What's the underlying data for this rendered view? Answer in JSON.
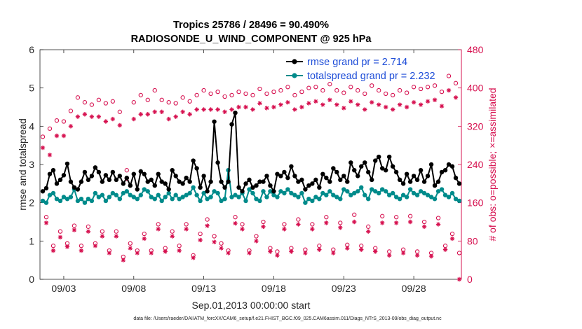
{
  "chart_data": {
    "type": "line",
    "title_line1": "Tropics 25786 / 28496 = 90.490%",
    "title_line2": "RADIOSONDE_U_WIND_COMPONENT @ 925 hPa",
    "xlabel": "Sep.01,2013 00:00:00 start",
    "ylabel_left": "rmse and totalspread",
    "ylabel_right": "# of obs: o=possible; ×=assimilated",
    "footnote": "data file: /Users/raeder/DAI/ATM_forcXX/CAM6_setup/f.e21.FHIST_BGC.f09_025.CAM6assim.011/Diags_NTrS_2013-09/obs_diag_output.nc",
    "x_unit": "days since Sep.01,2013 00:00",
    "xlim": [
      0.8,
      30.9
    ],
    "ylim_left": [
      0,
      6
    ],
    "ylim_right": [
      0,
      480
    ],
    "x_tick_values": [
      2.5,
      7.5,
      12.5,
      17.5,
      22.5,
      27.5
    ],
    "x_tick_labels": [
      "09/03",
      "09/08",
      "09/13",
      "09/18",
      "09/23",
      "09/28"
    ],
    "y_left_ticks": [
      "0",
      "1",
      "2",
      "3",
      "4",
      "5",
      "6"
    ],
    "y_right_ticks": [
      "0",
      "80",
      "160",
      "240",
      "320",
      "400",
      "480"
    ],
    "colors": {
      "rmse": "#000000",
      "totalspread": "#008b8b",
      "obs": "#d6104f",
      "legend_text": "#1f4ed8",
      "axis_right": "#d6104f"
    },
    "legend": [
      {
        "name": "rmse grand pr = 2.714",
        "marker": "dot",
        "color": "#000000"
      },
      {
        "name": "totalspread grand pr = 2.232",
        "marker": "dot",
        "color": "#008b8b"
      }
    ],
    "x": [
      1.0,
      1.25,
      1.5,
      1.75,
      2.0,
      2.25,
      2.5,
      2.75,
      3.0,
      3.25,
      3.5,
      3.75,
      4.0,
      4.25,
      4.5,
      4.75,
      5.0,
      5.25,
      5.5,
      5.75,
      6.0,
      6.25,
      6.5,
      6.75,
      7.0,
      7.25,
      7.5,
      7.75,
      8.0,
      8.25,
      8.5,
      8.75,
      9.0,
      9.25,
      9.5,
      9.75,
      10.0,
      10.25,
      10.5,
      10.75,
      11.0,
      11.25,
      11.5,
      11.75,
      12.0,
      12.25,
      12.5,
      12.75,
      13.0,
      13.25,
      13.5,
      13.75,
      14.0,
      14.25,
      14.5,
      14.75,
      15.0,
      15.25,
      15.5,
      15.75,
      16.0,
      16.25,
      16.5,
      16.75,
      17.0,
      17.25,
      17.5,
      17.75,
      18.0,
      18.25,
      18.5,
      18.75,
      19.0,
      19.25,
      19.5,
      19.75,
      20.0,
      20.25,
      20.5,
      20.75,
      21.0,
      21.25,
      21.5,
      21.75,
      22.0,
      22.25,
      22.5,
      22.75,
      23.0,
      23.25,
      23.5,
      23.75,
      24.0,
      24.25,
      24.5,
      24.75,
      25.0,
      25.25,
      25.5,
      25.75,
      26.0,
      26.25,
      26.5,
      26.75,
      27.0,
      27.25,
      27.5,
      27.75,
      28.0,
      28.25,
      28.5,
      28.75,
      29.0,
      29.25,
      29.5,
      29.75,
      30.0,
      30.25,
      30.5,
      30.75
    ],
    "series": [
      {
        "name": "rmse",
        "axis": "left",
        "values": [
          2.3,
          2.38,
          2.75,
          2.85,
          2.5,
          2.6,
          2.72,
          3.02,
          2.55,
          2.4,
          2.35,
          2.55,
          2.8,
          2.6,
          2.7,
          2.92,
          2.8,
          2.55,
          2.72,
          2.6,
          2.8,
          2.6,
          2.7,
          2.5,
          2.65,
          2.45,
          2.75,
          2.35,
          2.82,
          2.75,
          2.55,
          2.6,
          2.45,
          2.75,
          2.55,
          2.5,
          2.35,
          2.85,
          2.7,
          2.55,
          2.5,
          2.65,
          2.55,
          3.1,
          2.9,
          2.4,
          2.7,
          2.3,
          2.55,
          4.12,
          3.05,
          2.55,
          2.4,
          2.55,
          4.05,
          4.35,
          2.4,
          2.3,
          2.5,
          2.6,
          2.4,
          2.45,
          2.55,
          2.55,
          2.7,
          2.45,
          2.3,
          2.75,
          2.7,
          2.8,
          2.65,
          2.95,
          2.7,
          2.55,
          2.6,
          2.35,
          2.45,
          2.5,
          2.6,
          2.4,
          2.75,
          2.65,
          2.55,
          2.9,
          2.8,
          2.6,
          2.7,
          2.55,
          3.05,
          2.85,
          2.7,
          2.95,
          3.05,
          2.8,
          2.6,
          3.1,
          3.2,
          2.9,
          2.85,
          3.2,
          2.95,
          2.8,
          2.6,
          2.5,
          2.75,
          2.55,
          2.7,
          2.6,
          2.85,
          2.55,
          2.7,
          3.0,
          2.45,
          2.55,
          2.8,
          2.85,
          3.0,
          2.95,
          2.65,
          2.5
        ]
      },
      {
        "name": "totalspread",
        "axis": "left",
        "values": [
          2.05,
          2.0,
          2.2,
          2.25,
          2.1,
          2.05,
          2.15,
          2.1,
          2.15,
          2.35,
          2.05,
          2.1,
          2.0,
          2.1,
          2.05,
          2.25,
          2.15,
          2.2,
          2.05,
          2.15,
          2.25,
          2.2,
          2.1,
          2.25,
          2.3,
          2.2,
          2.15,
          2.1,
          2.2,
          2.35,
          2.3,
          2.15,
          2.1,
          2.2,
          2.05,
          2.15,
          2.25,
          2.1,
          2.2,
          2.1,
          2.15,
          2.2,
          2.25,
          2.4,
          2.2,
          2.05,
          2.25,
          2.1,
          2.15,
          2.3,
          2.25,
          2.05,
          2.1,
          2.85,
          2.15,
          2.2,
          2.15,
          2.25,
          2.05,
          2.35,
          2.25,
          2.1,
          2.05,
          2.3,
          2.15,
          2.3,
          2.2,
          2.15,
          2.3,
          2.25,
          2.35,
          2.25,
          2.2,
          2.15,
          2.25,
          2.0,
          2.1,
          2.05,
          2.15,
          2.1,
          2.25,
          2.2,
          2.3,
          2.2,
          2.15,
          2.1,
          2.35,
          2.3,
          2.2,
          2.25,
          2.3,
          2.4,
          2.2,
          2.1,
          2.35,
          2.3,
          2.25,
          2.35,
          2.3,
          2.2,
          2.25,
          2.15,
          2.1,
          2.2,
          2.15,
          2.35,
          2.25,
          2.2,
          2.3,
          2.25,
          2.2,
          2.15,
          2.1,
          2.3,
          2.35,
          2.2,
          2.15,
          2.25,
          2.1,
          2.05
        ]
      },
      {
        "name": "obs possible",
        "axis": "right",
        "marker": "circle",
        "values": [
          298,
          130,
          315,
          70,
          332,
          100,
          330,
          75,
          352,
          112,
          380,
          70,
          370,
          110,
          365,
          75,
          375,
          100,
          368,
          60,
          372,
          100,
          350,
          47,
          228,
          75,
          370,
          60,
          385,
          95,
          375,
          60,
          395,
          115,
          375,
          65,
          370,
          100,
          368,
          70,
          380,
          115,
          372,
          50,
          385,
          95,
          395,
          125,
          388,
          90,
          392,
          75,
          382,
          60,
          385,
          130,
          392,
          115,
          388,
          60,
          385,
          90,
          398,
          120,
          388,
          65,
          392,
          58,
          395,
          115,
          402,
          65,
          385,
          125,
          392,
          62,
          400,
          115,
          402,
          70,
          395,
          130,
          408,
          62,
          395,
          118,
          390,
          72,
          402,
          135,
          395,
          70,
          388,
          110,
          405,
          65,
          395,
          132,
          388,
          58,
          385,
          130,
          395,
          62,
          390,
          132,
          402,
          58,
          398,
          120,
          402,
          55,
          405,
          128,
          392,
          70,
          425,
          95,
          410,
          55
        ]
      },
      {
        "name": "obs assimilated",
        "axis": "right",
        "marker": "asterisk",
        "values": [
          275,
          118,
          260,
          60,
          300,
          88,
          300,
          68,
          320,
          103,
          340,
          60,
          345,
          100,
          340,
          70,
          340,
          90,
          330,
          55,
          335,
          90,
          322,
          40,
          210,
          65,
          335,
          55,
          345,
          85,
          345,
          55,
          350,
          105,
          350,
          58,
          335,
          90,
          340,
          60,
          350,
          105,
          345,
          45,
          355,
          82,
          355,
          112,
          355,
          78,
          355,
          65,
          350,
          55,
          355,
          117,
          360,
          105,
          360,
          55,
          355,
          80,
          368,
          110,
          358,
          58,
          360,
          50,
          365,
          105,
          370,
          58,
          355,
          115,
          360,
          55,
          368,
          105,
          372,
          62,
          365,
          118,
          375,
          55,
          365,
          108,
          358,
          65,
          372,
          120,
          365,
          62,
          355,
          100,
          370,
          58,
          365,
          118,
          360,
          50,
          355,
          118,
          365,
          55,
          360,
          120,
          370,
          50,
          365,
          110,
          372,
          48,
          375,
          115,
          362,
          62,
          395,
          85,
          380,
          0
        ]
      }
    ]
  }
}
